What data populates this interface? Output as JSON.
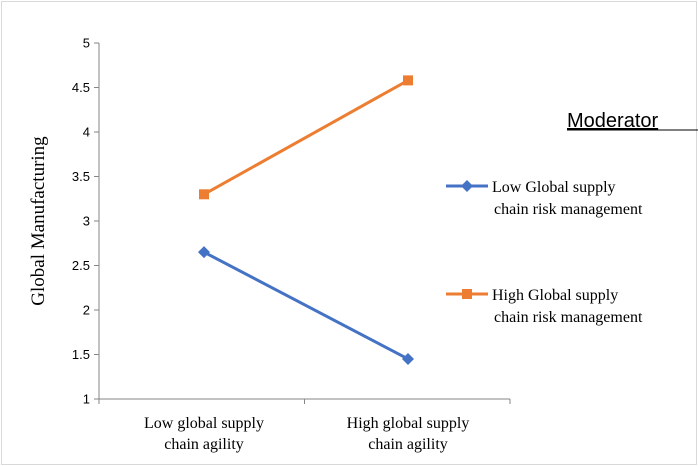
{
  "chart_data": {
    "type": "line",
    "title": "",
    "ylabel": "Global Manufacturing",
    "xlabel": "",
    "ylim": [
      1,
      5
    ],
    "yticks": [
      "1",
      "1.5",
      "2",
      "2.5",
      "3",
      "3.5",
      "4",
      "4.5",
      "5"
    ],
    "categories": [
      [
        "Low global supply",
        "chain agility"
      ],
      [
        "High global supply",
        "chain agility"
      ]
    ],
    "series": [
      {
        "name": [
          "Low Global supply",
          "chain risk management"
        ],
        "values": [
          2.65,
          1.45
        ],
        "color": "#4472C4",
        "marker": "diamond"
      },
      {
        "name": [
          "High Global supply",
          "chain risk management"
        ],
        "values": [
          3.3,
          4.58
        ],
        "color": "#ED7D31",
        "marker": "square"
      }
    ],
    "legend": {
      "title": "Moderator",
      "position": "right"
    },
    "grid": false
  }
}
